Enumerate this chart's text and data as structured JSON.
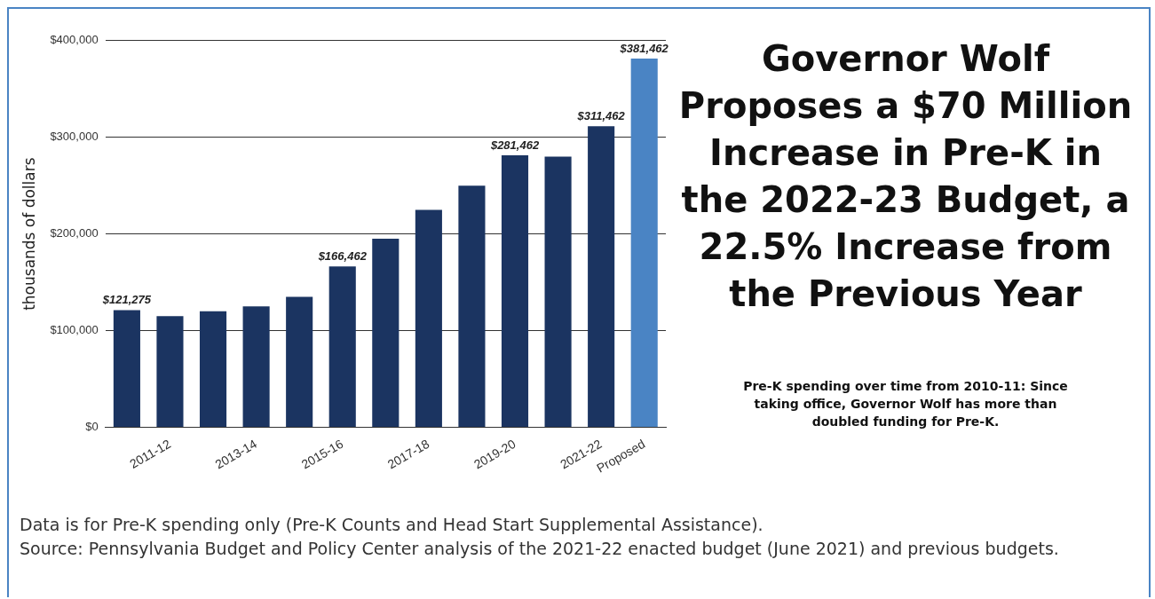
{
  "chart_data": {
    "type": "bar",
    "title": "Governor Wolf Proposes a $70 Million Increase in Pre-K in the 2022-23 Budget, a 22.5% Increase from the Previous Year",
    "subtitle": "Pre-K spending over time from 2010-11: Since taking office, Governor Wolf has more than doubled funding for Pre-K.",
    "ylabel": "thousands of dollars",
    "categories": [
      null,
      "2011-12",
      null,
      "2013-14",
      null,
      "2015-16",
      null,
      "2017-18",
      null,
      "2019-20",
      null,
      "2021-22",
      "Proposed"
    ],
    "values": [
      121275,
      115000,
      120000,
      125000,
      135000,
      166462,
      195000,
      225000,
      250000,
      281462,
      280000,
      311462,
      381462
    ],
    "colors": [
      "#1b3461",
      "#1b3461",
      "#1b3461",
      "#1b3461",
      "#1b3461",
      "#1b3461",
      "#1b3461",
      "#1b3461",
      "#1b3461",
      "#1b3461",
      "#1b3461",
      "#1b3461",
      "#4a84c4"
    ],
    "value_labels": [
      "$121,275",
      null,
      null,
      null,
      null,
      "$166,462",
      null,
      null,
      null,
      "$281,462",
      null,
      "$311,462",
      "$381,462"
    ],
    "ylim": [
      0,
      400000
    ],
    "yticks": [
      {
        "value": 0,
        "label": "$0"
      },
      {
        "value": 100000,
        "label": "$100,000"
      },
      {
        "value": 200000,
        "label": "$200,000"
      },
      {
        "value": 300000,
        "label": "$300,000"
      },
      {
        "value": 400000,
        "label": "$400,000"
      }
    ],
    "grid": "y",
    "annotations": [
      "Data is for Pre-K spending only (Pre-K Counts and Head Start Supplemental Assistance).",
      "Source: Pennsylvania Budget and Policy Center analysis of the 2021-22 enacted budget (June 2021) and previous budgets."
    ]
  }
}
